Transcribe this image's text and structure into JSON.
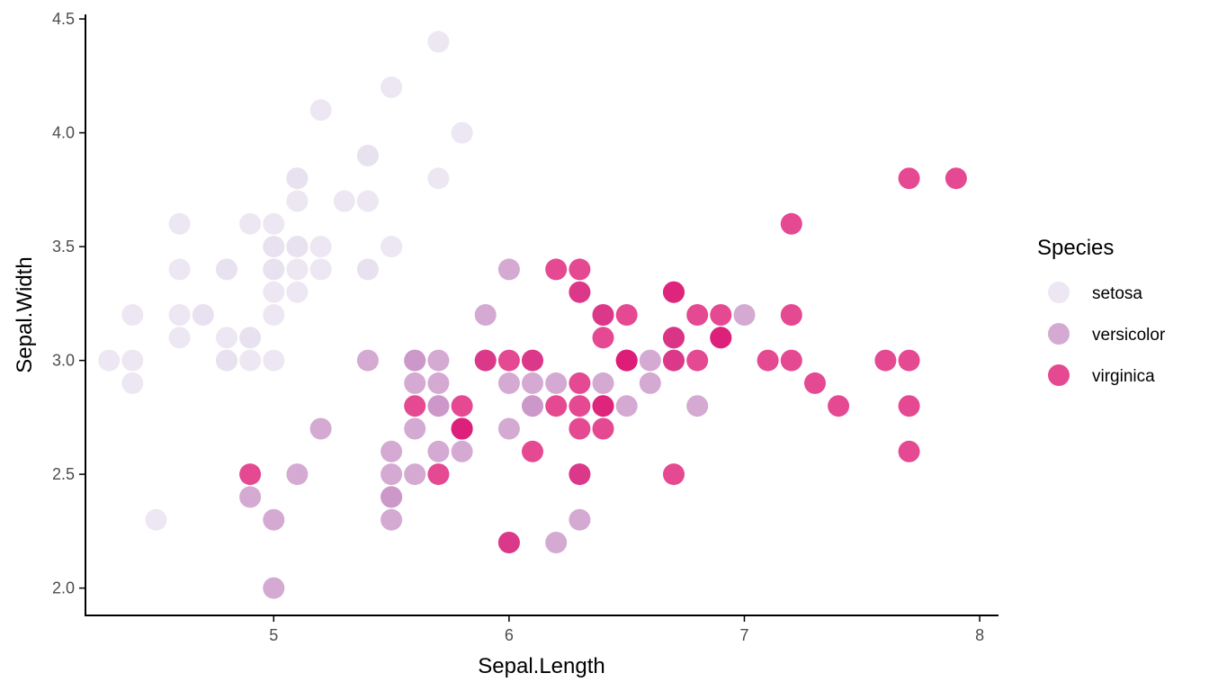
{
  "chart_data": {
    "type": "scatter",
    "xlabel": "Sepal.Length",
    "ylabel": "Sepal.Width",
    "xlim": [
      4.2,
      8.08
    ],
    "ylim": [
      1.88,
      4.52
    ],
    "x_ticks": [
      5,
      6,
      7,
      8
    ],
    "y_ticks": [
      2.0,
      2.5,
      3.0,
      3.5,
      4.0,
      4.5
    ],
    "x_tick_labels": [
      "5",
      "6",
      "7",
      "8"
    ],
    "y_tick_labels": [
      "2.0",
      "2.5",
      "3.0",
      "3.5",
      "4.0",
      "4.5"
    ],
    "grid": false,
    "legend": {
      "title": "Species",
      "placement": "right",
      "entries": [
        "setosa",
        "versicolor",
        "virginica"
      ]
    },
    "series": [
      {
        "name": "setosa",
        "color": "#e7e1ef",
        "points": [
          [
            5.1,
            3.5
          ],
          [
            4.9,
            3.0
          ],
          [
            4.7,
            3.2
          ],
          [
            4.6,
            3.1
          ],
          [
            5.0,
            3.6
          ],
          [
            5.4,
            3.9
          ],
          [
            4.6,
            3.4
          ],
          [
            5.0,
            3.4
          ],
          [
            4.4,
            2.9
          ],
          [
            4.9,
            3.1
          ],
          [
            5.4,
            3.7
          ],
          [
            4.8,
            3.4
          ],
          [
            4.8,
            3.0
          ],
          [
            4.3,
            3.0
          ],
          [
            5.8,
            4.0
          ],
          [
            5.7,
            4.4
          ],
          [
            5.4,
            3.9
          ],
          [
            5.1,
            3.5
          ],
          [
            5.7,
            3.8
          ],
          [
            5.1,
            3.8
          ],
          [
            5.4,
            3.4
          ],
          [
            5.1,
            3.7
          ],
          [
            4.6,
            3.6
          ],
          [
            5.1,
            3.3
          ],
          [
            4.8,
            3.4
          ],
          [
            5.0,
            3.0
          ],
          [
            5.0,
            3.4
          ],
          [
            5.2,
            3.5
          ],
          [
            5.2,
            3.4
          ],
          [
            4.7,
            3.2
          ],
          [
            4.8,
            3.1
          ],
          [
            5.4,
            3.4
          ],
          [
            5.2,
            4.1
          ],
          [
            5.5,
            4.2
          ],
          [
            4.9,
            3.1
          ],
          [
            5.0,
            3.2
          ],
          [
            5.5,
            3.5
          ],
          [
            4.9,
            3.6
          ],
          [
            4.4,
            3.0
          ],
          [
            5.1,
            3.4
          ],
          [
            5.0,
            3.5
          ],
          [
            4.5,
            2.3
          ],
          [
            4.4,
            3.2
          ],
          [
            5.0,
            3.5
          ],
          [
            5.1,
            3.8
          ],
          [
            4.8,
            3.0
          ],
          [
            5.1,
            3.8
          ],
          [
            4.6,
            3.2
          ],
          [
            5.3,
            3.7
          ],
          [
            5.0,
            3.3
          ]
        ]
      },
      {
        "name": "versicolor",
        "color": "#c994c7",
        "points": [
          [
            7.0,
            3.2
          ],
          [
            6.4,
            3.2
          ],
          [
            6.9,
            3.1
          ],
          [
            5.5,
            2.3
          ],
          [
            6.5,
            2.8
          ],
          [
            5.7,
            2.8
          ],
          [
            6.3,
            3.3
          ],
          [
            4.9,
            2.4
          ],
          [
            6.6,
            2.9
          ],
          [
            5.2,
            2.7
          ],
          [
            5.0,
            2.0
          ],
          [
            5.9,
            3.0
          ],
          [
            6.0,
            2.2
          ],
          [
            6.1,
            2.9
          ],
          [
            5.6,
            2.9
          ],
          [
            6.7,
            3.1
          ],
          [
            5.6,
            3.0
          ],
          [
            5.8,
            2.7
          ],
          [
            6.2,
            2.2
          ],
          [
            5.6,
            2.5
          ],
          [
            5.9,
            3.2
          ],
          [
            6.1,
            2.8
          ],
          [
            6.3,
            2.5
          ],
          [
            6.1,
            2.8
          ],
          [
            6.4,
            2.9
          ],
          [
            6.6,
            3.0
          ],
          [
            6.8,
            2.8
          ],
          [
            6.7,
            3.0
          ],
          [
            6.0,
            2.9
          ],
          [
            5.7,
            2.6
          ],
          [
            5.5,
            2.4
          ],
          [
            5.5,
            2.4
          ],
          [
            5.8,
            2.7
          ],
          [
            6.0,
            2.7
          ],
          [
            5.4,
            3.0
          ],
          [
            6.0,
            3.4
          ],
          [
            6.7,
            3.1
          ],
          [
            6.3,
            2.3
          ],
          [
            5.6,
            3.0
          ],
          [
            5.5,
            2.5
          ],
          [
            5.5,
            2.6
          ],
          [
            6.1,
            3.0
          ],
          [
            5.8,
            2.6
          ],
          [
            5.0,
            2.3
          ],
          [
            5.6,
            2.7
          ],
          [
            5.7,
            3.0
          ],
          [
            5.7,
            2.9
          ],
          [
            6.2,
            2.9
          ],
          [
            5.1,
            2.5
          ],
          [
            5.7,
            2.8
          ]
        ]
      },
      {
        "name": "virginica",
        "color": "#dd1c77",
        "points": [
          [
            6.3,
            3.3
          ],
          [
            5.8,
            2.7
          ],
          [
            7.1,
            3.0
          ],
          [
            6.3,
            2.9
          ],
          [
            6.5,
            3.0
          ],
          [
            7.6,
            3.0
          ],
          [
            4.9,
            2.5
          ],
          [
            7.3,
            2.9
          ],
          [
            6.7,
            2.5
          ],
          [
            7.2,
            3.6
          ],
          [
            6.5,
            3.2
          ],
          [
            6.4,
            2.7
          ],
          [
            6.8,
            3.0
          ],
          [
            5.7,
            2.5
          ],
          [
            5.8,
            2.8
          ],
          [
            6.4,
            3.2
          ],
          [
            6.5,
            3.0
          ],
          [
            7.7,
            3.8
          ],
          [
            7.7,
            2.6
          ],
          [
            6.0,
            2.2
          ],
          [
            6.9,
            3.2
          ],
          [
            5.6,
            2.8
          ],
          [
            7.7,
            2.8
          ],
          [
            6.3,
            2.7
          ],
          [
            6.7,
            3.3
          ],
          [
            7.2,
            3.2
          ],
          [
            6.2,
            2.8
          ],
          [
            6.1,
            3.0
          ],
          [
            6.4,
            2.8
          ],
          [
            7.2,
            3.0
          ],
          [
            7.4,
            2.8
          ],
          [
            7.9,
            3.8
          ],
          [
            6.4,
            2.8
          ],
          [
            6.3,
            2.8
          ],
          [
            6.1,
            2.6
          ],
          [
            7.7,
            3.0
          ],
          [
            6.3,
            3.4
          ],
          [
            6.4,
            3.1
          ],
          [
            6.0,
            3.0
          ],
          [
            6.9,
            3.1
          ],
          [
            6.7,
            3.1
          ],
          [
            6.9,
            3.1
          ],
          [
            5.8,
            2.7
          ],
          [
            6.8,
            3.2
          ],
          [
            6.7,
            3.3
          ],
          [
            6.7,
            3.0
          ],
          [
            6.3,
            2.5
          ],
          [
            6.5,
            3.0
          ],
          [
            6.2,
            3.4
          ],
          [
            5.9,
            3.0
          ]
        ]
      }
    ]
  }
}
